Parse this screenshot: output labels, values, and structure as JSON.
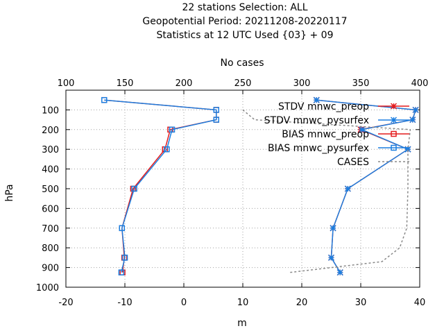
{
  "chart_data": {
    "type": "line",
    "title": [
      "22 stations Selection: ALL",
      "Geopotential  Period: 20211208-20220117",
      "Statistics at 12 UTC  Used {03} + 09"
    ],
    "xlabel": "m",
    "ylabel": "hPa",
    "x2label": "No cases",
    "xlim": [
      -20,
      40
    ],
    "ylim": [
      1000,
      0
    ],
    "x2lim": [
      100,
      400
    ],
    "xticks": [
      "-20",
      "-10",
      "0",
      "10",
      "20",
      "30",
      "40"
    ],
    "x2ticks": [
      "100",
      "150",
      "200",
      "250",
      "300",
      "350",
      "400"
    ],
    "yticks": [
      "100",
      "200",
      "300",
      "400",
      "500",
      "600",
      "700",
      "800",
      "900",
      "1000"
    ],
    "grid": true,
    "legend_position": "top-right",
    "series": [
      {
        "name": "STDV mnwc_preop",
        "color": "#e41a1c",
        "marker": "star",
        "dash": false,
        "axis": "x",
        "points": [
          [
            22.5,
            50
          ],
          [
            39.3,
            100
          ],
          [
            38.8,
            150
          ],
          [
            30.0,
            200
          ],
          [
            38.0,
            300
          ],
          [
            27.8,
            500
          ],
          [
            25.3,
            700
          ],
          [
            25.0,
            850
          ],
          [
            26.5,
            925
          ]
        ]
      },
      {
        "name": "STDV mnwc_pysurfex",
        "color": "#1c7fe0",
        "marker": "star",
        "dash": false,
        "axis": "x",
        "points": [
          [
            22.5,
            50
          ],
          [
            39.3,
            100
          ],
          [
            38.8,
            150
          ],
          [
            30.2,
            200
          ],
          [
            38.0,
            300
          ],
          [
            27.8,
            500
          ],
          [
            25.3,
            700
          ],
          [
            25.0,
            850
          ],
          [
            26.5,
            925
          ]
        ]
      },
      {
        "name": "BIAS mnwc_preop",
        "color": "#e41a1c",
        "marker": "square",
        "dash": false,
        "axis": "x",
        "points": [
          [
            -13.5,
            50
          ],
          [
            5.5,
            100
          ],
          [
            5.5,
            150
          ],
          [
            -2.3,
            200
          ],
          [
            -3.2,
            300
          ],
          [
            -8.6,
            500
          ],
          [
            -10.5,
            700
          ],
          [
            -10.1,
            850
          ],
          [
            -10.4,
            925
          ]
        ]
      },
      {
        "name": "BIAS mnwc_pysurfex",
        "color": "#1c7fe0",
        "marker": "square",
        "dash": false,
        "axis": "x",
        "points": [
          [
            -13.5,
            50
          ],
          [
            5.5,
            100
          ],
          [
            5.5,
            150
          ],
          [
            -2.0,
            200
          ],
          [
            -2.9,
            300
          ],
          [
            -8.4,
            500
          ],
          [
            -10.5,
            700
          ],
          [
            -10.0,
            850
          ],
          [
            -10.6,
            925
          ]
        ]
      },
      {
        "name": "CASES",
        "color": "#888888",
        "marker": "none",
        "dash": true,
        "axis": "x2",
        "points": [
          [
            250,
            100
          ],
          [
            260,
            150
          ],
          [
            392,
            200
          ],
          [
            391,
            250
          ],
          [
            390,
            300
          ],
          [
            390,
            500
          ],
          [
            389,
            700
          ],
          [
            383,
            800
          ],
          [
            368,
            870
          ],
          [
            290,
            925
          ]
        ]
      }
    ]
  }
}
